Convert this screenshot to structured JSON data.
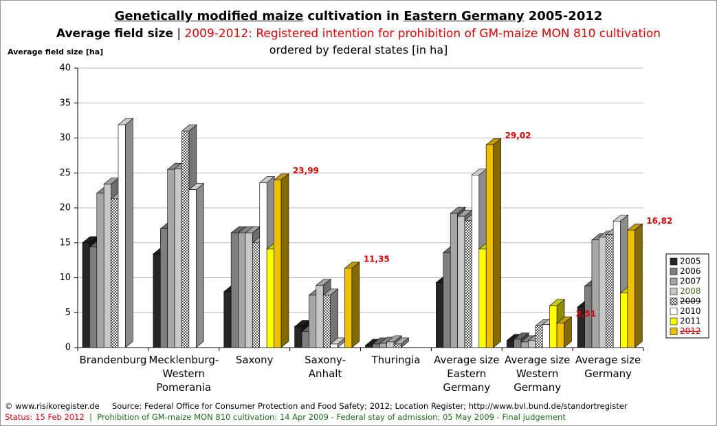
{
  "chart_data": {
    "type": "bar3d",
    "title_parts": [
      "Genetically modified maize",
      " cultivation in ",
      "Eastern Germany",
      " 2005-2012"
    ],
    "subtitle_parts": [
      "Average field size",
      " | ",
      "2009-2012: Registered intention for prohibition of GM-maize MON 810 cultivation"
    ],
    "subtitle2": "ordered by federal states [in ha]",
    "y_label": "Average field size [ha]",
    "categories": [
      "Brandenburg",
      "Mecklenburg-\nWestern\nPomerania",
      "Saxony",
      "Saxony-\nAnhalt",
      "Thuringia",
      "Average size\nEastern\nGermany",
      "Average size\nWestern\nGermany",
      "Average size\nGermany"
    ],
    "ylim": [
      0,
      40
    ],
    "yticks": [
      0,
      5,
      10,
      15,
      20,
      25,
      30,
      35,
      40
    ],
    "grid": true,
    "legend": "right",
    "series": [
      {
        "name": "2005",
        "color": "#262626",
        "values": [
          15.0,
          13.4,
          8.0,
          3.0,
          0.3,
          9.3,
          1.0,
          5.8
        ]
      },
      {
        "name": "2006",
        "color": "#7f7f7f",
        "values": [
          14.4,
          17.0,
          16.4,
          2.3,
          0.5,
          13.6,
          1.2,
          8.8
        ]
      },
      {
        "name": "2007",
        "color": "#a6a6a6",
        "values": [
          22.1,
          25.5,
          16.4,
          7.5,
          0.6,
          19.2,
          0.8,
          15.4
        ]
      },
      {
        "name": "2008",
        "color": "#c8c8c8",
        "values": [
          23.4,
          25.6,
          16.4,
          8.9,
          0.8,
          18.8,
          1.0,
          15.8
        ]
      },
      {
        "name": "2009",
        "color": "#e0e0e0",
        "pattern": "checker",
        "values": [
          21.3,
          31.0,
          15.0,
          7.5,
          0.5,
          18.2,
          3.1,
          16.2
        ]
      },
      {
        "name": "2010",
        "color": "#ffffff",
        "values": [
          31.9,
          22.6,
          23.6,
          0.5,
          null,
          24.7,
          3.3,
          18.1
        ]
      },
      {
        "name": "2011",
        "color": "#ffff00",
        "values": [
          null,
          null,
          14.1,
          null,
          null,
          14.1,
          6.0,
          7.8
        ]
      },
      {
        "name": "2012",
        "color": "#f0c000",
        "values": [
          null,
          null,
          23.99,
          11.35,
          null,
          29.02,
          3.51,
          16.82
        ],
        "value_labels": [
          null,
          null,
          "23,99",
          "11,35",
          null,
          "29,02",
          "3,51",
          "16,82"
        ]
      }
    ]
  },
  "footer": {
    "copyright": "© www.risikoregister.de",
    "source": "Source: Federal Office for Consumer Protection and Food Safety; 2012; Location Register; http://www.bvl.bund.de/standortregister",
    "status": "Status: 15 Feb 2012",
    "separator": "|",
    "prohibition": "Prohibition of GM-maize MON 810 cultivation: 14 Apr 2009 - Federal stay of admission; 05 May 2009 - Final judgement"
  }
}
